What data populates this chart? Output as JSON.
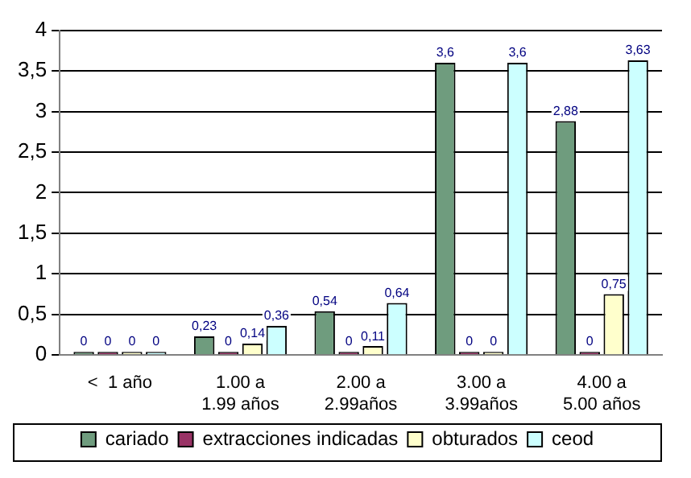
{
  "chart_data": {
    "type": "bar",
    "categories": [
      "<  1 año",
      "1.00 a\n1.99 años",
      "2.00 a\n2.99años",
      "3.00 a\n3.99años",
      "4.00 a\n5.00 años"
    ],
    "series": [
      {
        "name": "cariado",
        "color": "#6f9c7e",
        "values": [
          0,
          0.23,
          0.54,
          3.6,
          2.88
        ],
        "value_labels": [
          "0",
          "0,23",
          "0,54",
          "3,6",
          "2,88"
        ]
      },
      {
        "name": "extracciones indicadas",
        "color": "#993366",
        "values": [
          0,
          0,
          0,
          0,
          0
        ],
        "value_labels": [
          "0",
          "0",
          "0",
          "0",
          "0"
        ]
      },
      {
        "name": "obturados",
        "color": "#ffffcc",
        "values": [
          0,
          0.14,
          0.11,
          0,
          0.75
        ],
        "value_labels": [
          "0",
          "0,14",
          "0,11",
          "0",
          "0,75"
        ]
      },
      {
        "name": "ceod",
        "color": "#ccffff",
        "values": [
          0,
          0.36,
          0.64,
          3.6,
          3.63
        ],
        "value_labels": [
          "0",
          "0,36",
          "0,64",
          "3,6",
          "3,63"
        ]
      }
    ],
    "ylim": [
      0,
      4
    ],
    "yticks": [
      {
        "value": 0,
        "label": "0"
      },
      {
        "value": 0.5,
        "label": "0,5"
      },
      {
        "value": 1,
        "label": "1"
      },
      {
        "value": 1.5,
        "label": "1,5"
      },
      {
        "value": 2,
        "label": "2"
      },
      {
        "value": 2.5,
        "label": "2,5"
      },
      {
        "value": 3,
        "label": "3"
      },
      {
        "value": 3.5,
        "label": "3,5"
      },
      {
        "value": 4,
        "label": "4"
      }
    ],
    "grid": "y",
    "legend": "bottom"
  }
}
